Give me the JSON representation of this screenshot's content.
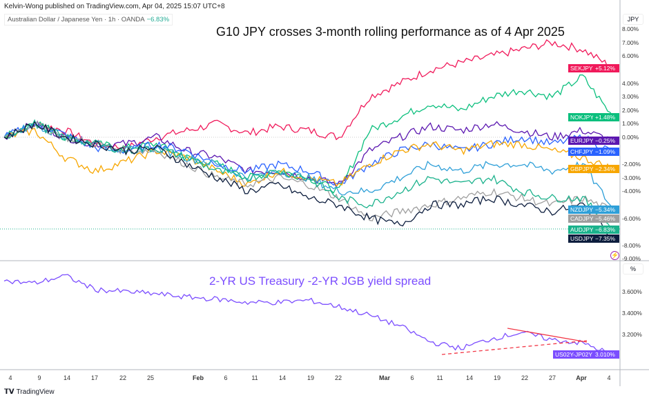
{
  "header": {
    "published": "Kelvin-Wong published on TradingView.com, Apr 04, 2025 15:07 UTC+8",
    "symbol": "Australian Dollar / Japanese Yen · 1h · OANDA",
    "symbol_change": "−6.83%"
  },
  "footer": {
    "brand": "TradingView"
  },
  "chart_data": [
    {
      "type": "line",
      "title": "G10 JPY crosses 3-month rolling performance as of 4 Apr 2025",
      "unit": "JPY",
      "ylim": [
        -9,
        8
      ],
      "yticks": [
        "8.00%",
        "7.00%",
        "6.00%",
        "4.00%",
        "3.00%",
        "2.00%",
        "1.00%",
        "0.00%",
        "-2.00%",
        "-3.00%",
        "-4.00%",
        "-6.00%",
        "-8.00%",
        "-9.00%"
      ],
      "ytick_values": [
        8,
        7,
        6,
        4,
        3,
        2,
        1,
        0,
        -2,
        -3,
        -4,
        -6,
        -8,
        -9
      ],
      "series": [
        {
          "name": "SEKJPY",
          "last": "+5.12%",
          "value": 5.12,
          "color": "#f0195a",
          "values": [
            0,
            1,
            0.5,
            -0.5,
            -0.8,
            0,
            0.5,
            1,
            0.3,
            0.8,
            0.5,
            0,
            3,
            4,
            5,
            5.5,
            6,
            6.5,
            7,
            6.5,
            5.12
          ]
        },
        {
          "name": "NOKJPY",
          "last": "+1.48%",
          "value": 1.48,
          "color": "#0bbf7d",
          "values": [
            0,
            1.2,
            0,
            -0.5,
            -0.8,
            -0.5,
            -1.5,
            -2,
            -3,
            -2.5,
            -3,
            -4,
            0.5,
            1.5,
            2.5,
            2,
            3,
            3.5,
            3,
            4.5,
            1.48
          ]
        },
        {
          "name": "EURJPY",
          "last": "−0.25%",
          "value": -0.25,
          "color": "#5b17b0",
          "values": [
            0,
            1,
            0,
            -0.5,
            -0.5,
            0,
            -1,
            -1.5,
            -2.5,
            -2.5,
            -3,
            -3.5,
            -1,
            0,
            0.8,
            0.5,
            1,
            0.5,
            0,
            0.5,
            -0.25
          ]
        },
        {
          "name": "CHFJPY",
          "last": "−1.09%",
          "value": -1.09,
          "color": "#2962ff",
          "values": [
            0,
            1,
            0.2,
            -0.8,
            -1,
            -0.5,
            -1,
            -2,
            -2.5,
            -2,
            -2.5,
            -3.5,
            -2,
            -1,
            -0.5,
            -1,
            -0.5,
            0,
            -0.5,
            0,
            -1.09
          ]
        },
        {
          "name": "GBPJPY",
          "last": "−2.34%",
          "value": -2.34,
          "color": "#f7a600",
          "values": [
            0,
            0.5,
            -1.5,
            -2.5,
            -1.8,
            -1,
            -1.5,
            -2.5,
            -3.5,
            -2.5,
            -3,
            -3.5,
            -2,
            -1,
            -0.5,
            -1,
            -0.5,
            -0.5,
            -1,
            -1.5,
            -2.34
          ]
        },
        {
          "name": "NZDJPY",
          "last": "−5.34%",
          "value": -5.34,
          "color": "#2e9fd8",
          "values": [
            0,
            1,
            0,
            -0.5,
            -1,
            -0.8,
            -1.5,
            -2,
            -3,
            -2.5,
            -3,
            -4,
            -4,
            -3,
            -2,
            -2.5,
            -2,
            -2,
            -2.5,
            -2,
            -5.34
          ]
        },
        {
          "name": "CADJPY",
          "last": "−5.46%",
          "value": -5.46,
          "color": "#9e9e9e",
          "values": [
            0,
            1,
            0,
            -0.5,
            -1,
            -1,
            -2,
            -3,
            -3.5,
            -3,
            -3.5,
            -4.5,
            -6,
            -5.5,
            -5,
            -4.5,
            -4,
            -4.5,
            -5,
            -4.5,
            -5.46
          ]
        },
        {
          "name": "AUDJPY",
          "last": "−6.83%",
          "value": -6.83,
          "color": "#1bb28c",
          "values": [
            0,
            1,
            0,
            -0.5,
            -1,
            -0.8,
            -1.5,
            -2.5,
            -3,
            -2.5,
            -3,
            -4.5,
            -5,
            -4,
            -3,
            -3.5,
            -3,
            -4,
            -4.5,
            -4.5,
            -6.83
          ]
        },
        {
          "name": "USDJPY",
          "last": "−7.35%",
          "value": -7.35,
          "color": "#0c1d3d",
          "values": [
            0,
            1,
            0,
            -0.5,
            -1,
            -0.8,
            -2,
            -3,
            -4,
            -3.5,
            -4.5,
            -5,
            -6,
            -6.5,
            -5,
            -5,
            -4.5,
            -5,
            -5.5,
            -5,
            -7.35
          ]
        }
      ]
    },
    {
      "type": "line",
      "title": "2-YR US Treasury -2-YR JGB yield spread",
      "unit": "%",
      "ylim": [
        2.9,
        3.9
      ],
      "yticks": [
        "3.600%",
        "3.400%",
        "3.200%"
      ],
      "ytick_values": [
        3.6,
        3.4,
        3.2
      ],
      "series": [
        {
          "name": "US02Y-JP02Y",
          "last": "3.010%",
          "value": 3.01,
          "color": "#7b4dff",
          "values": [
            3.7,
            3.68,
            3.75,
            3.62,
            3.6,
            3.58,
            3.55,
            3.53,
            3.5,
            3.5,
            3.52,
            3.46,
            3.38,
            3.28,
            3.13,
            3.07,
            3.16,
            3.22,
            3.15,
            3.12,
            3.01
          ]
        }
      ]
    }
  ],
  "xaxis": {
    "labels": [
      "4",
      "9",
      "14",
      "17",
      "22",
      "25",
      "Feb",
      "6",
      "11",
      "14",
      "19",
      "22",
      "Mar",
      "6",
      "11",
      "14",
      "19",
      "22",
      "27",
      "Apr",
      "4"
    ]
  }
}
